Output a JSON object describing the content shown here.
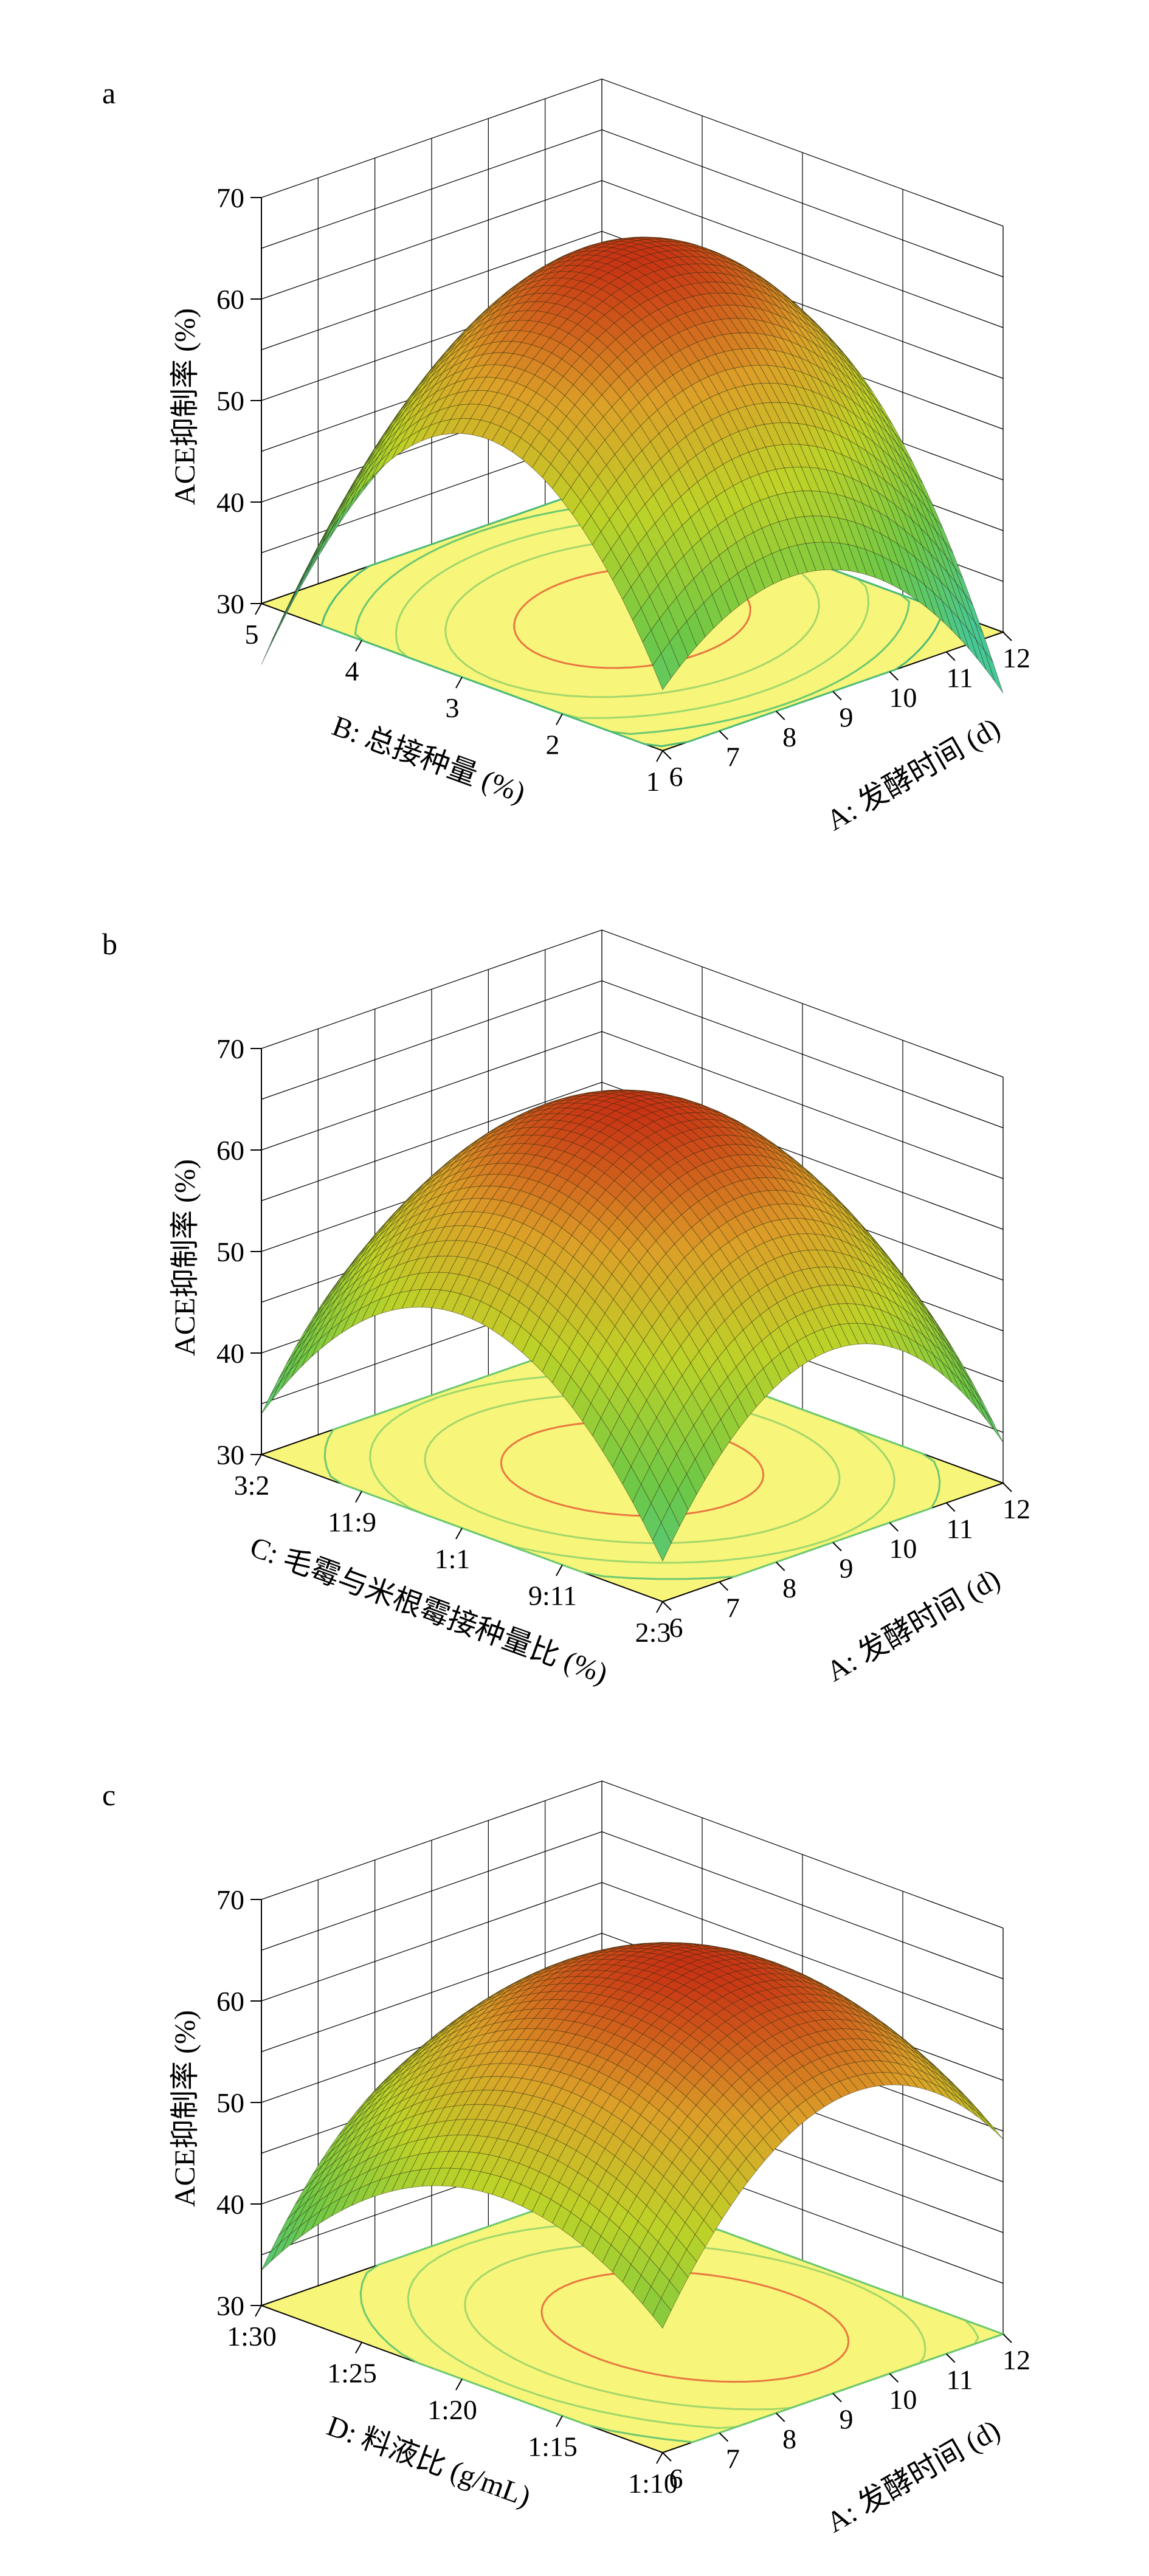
{
  "chart_data": [
    {
      "type": "surface",
      "panel_label": "a",
      "zlabel": "ACE抑制率 (%)",
      "zlim": [
        30,
        70
      ],
      "z_ticks": [
        "30",
        "40",
        "50",
        "60",
        "70"
      ],
      "xlabel": "A: 发酵时间 (d)",
      "x_ticks": [
        "6",
        "7",
        "8",
        "9",
        "10",
        "11",
        "12"
      ],
      "xlim": [
        6,
        12
      ],
      "ylabel": "B: 总接种量 (%)",
      "y_ticks": [
        "1",
        "2",
        "3",
        "4",
        "5"
      ],
      "ylim": [
        1,
        5
      ],
      "model": {
        "optimum_x": 9,
        "optimum_y": 3,
        "max_value": 66,
        "curvature_x": 12,
        "curvature_y": 24,
        "interaction": -6
      },
      "floor_contours": [
        {
          "level": 62,
          "color": "#e87840"
        },
        {
          "level": 56,
          "color": "#a6d66a"
        },
        {
          "level": 50,
          "color": "#9ed86c"
        },
        {
          "level": 44,
          "color": "#6cc870"
        },
        {
          "level": 38,
          "color": "#4cba78"
        }
      ]
    },
    {
      "type": "surface",
      "panel_label": "b",
      "zlabel": "ACE抑制率 (%)",
      "zlim": [
        30,
        70
      ],
      "z_ticks": [
        "30",
        "40",
        "50",
        "60",
        "70"
      ],
      "xlabel": "A: 发酵时间 (d)",
      "x_ticks": [
        "6",
        "7",
        "8",
        "9",
        "10",
        "11",
        "12"
      ],
      "xlim": [
        6,
        12
      ],
      "ylabel": "C: 毛霉与米根霉接种量比 (%)",
      "y_ticks": [
        "2:3",
        "9:11",
        "1:1",
        "11:9",
        "3:2"
      ],
      "ylim": [
        0,
        4
      ],
      "model": {
        "optimum_x": 9,
        "optimum_y": 2,
        "max_value": 66,
        "curvature_x": 15,
        "curvature_y": 17,
        "interaction": 0
      },
      "floor_contours": [
        {
          "level": 62,
          "color": "#e87840"
        },
        {
          "level": 56,
          "color": "#a6d66a"
        },
        {
          "level": 50,
          "color": "#9ed86c"
        },
        {
          "level": 44,
          "color": "#6cc870"
        }
      ]
    },
    {
      "type": "surface",
      "panel_label": "c",
      "zlabel": "ACE抑制率 (%)",
      "zlim": [
        30,
        70
      ],
      "z_ticks": [
        "30",
        "40",
        "50",
        "60",
        "70"
      ],
      "xlabel": "A: 发酵时间 (d)",
      "x_ticks": [
        "6",
        "7",
        "8",
        "9",
        "10",
        "11",
        "12"
      ],
      "xlim": [
        6,
        12
      ],
      "ylabel": "D: 料液比 (g/mL)",
      "y_ticks": [
        "1:10",
        "1:15",
        "1:20",
        "1:25",
        "1:30"
      ],
      "ylim": [
        0,
        4
      ],
      "model": {
        "optimum_x": 9.4,
        "optimum_y": 1.6,
        "max_value": 66,
        "curvature_x": 13,
        "curvature_y": 11,
        "interaction": 0
      },
      "floor_contours": [
        {
          "level": 62,
          "color": "#e87840"
        },
        {
          "level": 57,
          "color": "#a6d66a"
        },
        {
          "level": 52,
          "color": "#9ed86c"
        },
        {
          "level": 47,
          "color": "#6cc870"
        }
      ]
    }
  ]
}
